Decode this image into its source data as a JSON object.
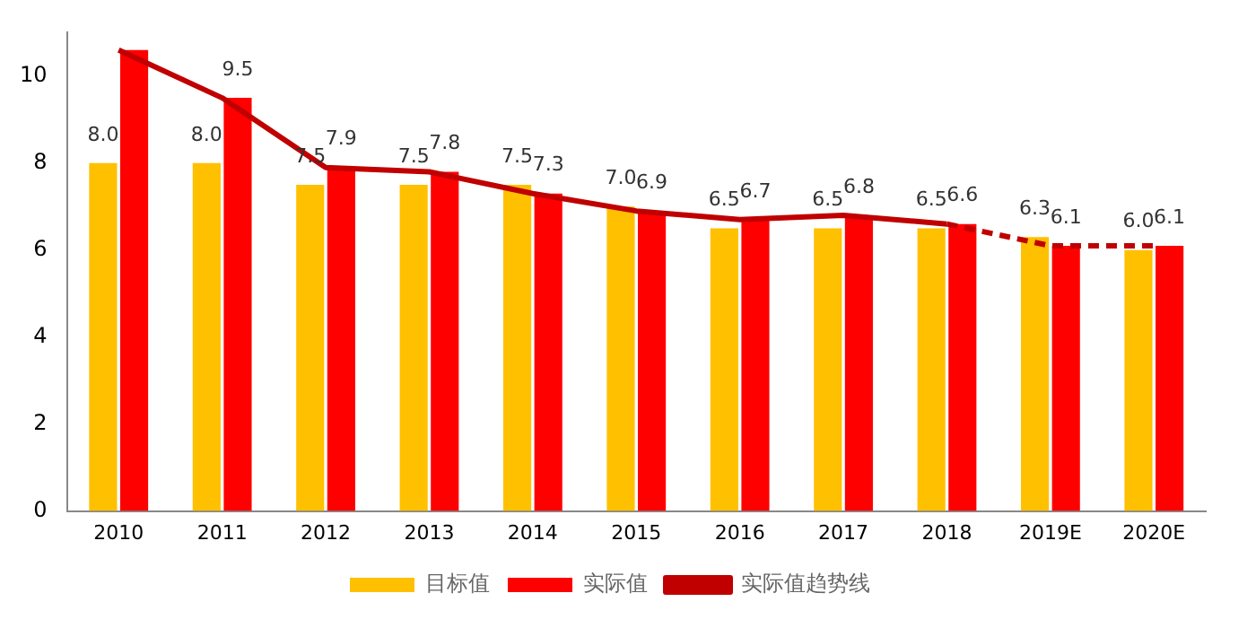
{
  "chart_data": {
    "type": "bar",
    "categories": [
      "2010",
      "2011",
      "2012",
      "2013",
      "2014",
      "2015",
      "2016",
      "2017",
      "2018",
      "2019E",
      "2020E"
    ],
    "series": [
      {
        "name": "目标值",
        "color": "#ffc000",
        "values": [
          8.0,
          8.0,
          7.5,
          7.5,
          7.5,
          7.0,
          6.5,
          6.5,
          6.5,
          6.3,
          6.0
        ],
        "value_labels": [
          "8.0",
          "8.0",
          "7.5",
          "7.5",
          "7.5",
          "7.0",
          "6.5",
          "6.5",
          "6.5",
          "6.3",
          "6.0"
        ]
      },
      {
        "name": "实际值",
        "color": "#ff0000",
        "values": [
          10.6,
          9.5,
          7.9,
          7.8,
          7.3,
          6.9,
          6.7,
          6.8,
          6.6,
          6.1,
          6.1
        ],
        "value_labels": [
          null,
          "9.5",
          "7.9",
          "7.8",
          "7.3",
          "6.9",
          "6.7",
          "6.8",
          "6.6",
          "6.1",
          "6.1"
        ]
      },
      {
        "name": "实际值趋势线",
        "type": "line",
        "color": "#c00000",
        "line_style": "solid",
        "values": [
          10.6,
          9.5,
          7.9,
          7.8,
          7.3,
          6.9,
          6.7,
          6.8,
          6.6,
          null,
          null
        ]
      },
      {
        "type": "line",
        "color": "#c00000",
        "line_style": "dashed",
        "values": [
          null,
          null,
          null,
          null,
          null,
          null,
          null,
          null,
          6.6,
          6.1,
          6.1
        ]
      }
    ],
    "ylim": [
      0,
      11
    ],
    "yticks": [
      0,
      2,
      4,
      6,
      8,
      10
    ],
    "grid": false,
    "legend": "bottom",
    "marker": "none"
  }
}
